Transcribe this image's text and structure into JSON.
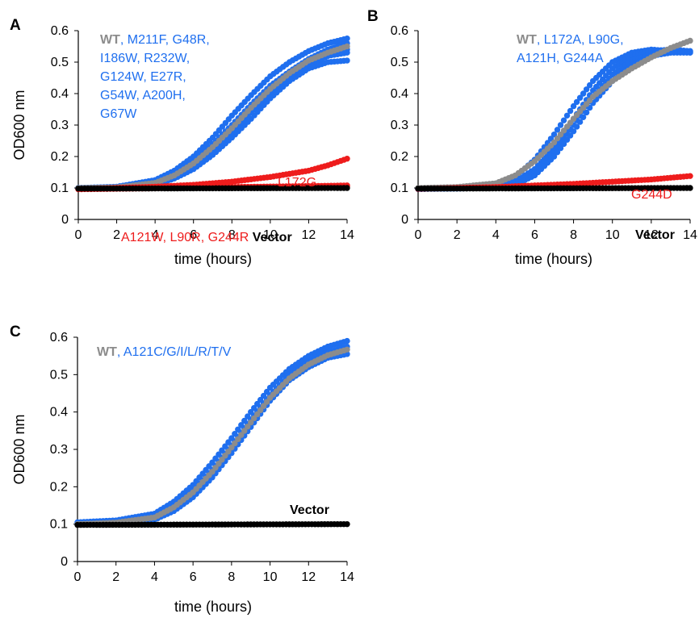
{
  "colors": {
    "wt": "#8c8c8c",
    "mutant_blue": "#1f6fef",
    "mutant_red": "#ee1c1c",
    "vector": "#000000"
  },
  "chart_data": [
    {
      "type": "scatter",
      "panel": "A",
      "xlabel": "time (hours)",
      "ylabel": "OD600 nm",
      "xlim": [
        0,
        14
      ],
      "ylim": [
        0,
        0.6
      ],
      "xticks": [
        "0",
        "2",
        "4",
        "6",
        "8",
        "10",
        "12",
        "14"
      ],
      "yticks": [
        "0",
        "0.1",
        "0.2",
        "0.3",
        "0.4",
        "0.5",
        "0.6"
      ],
      "grid": false,
      "legend": "none",
      "annotations": [
        {
          "lines": [
            [
              {
                "t": "WT",
                "c": "wt",
                "b": true
              },
              {
                "t": ", M211F, G48R,",
                "c": "mutant_blue"
              }
            ],
            [
              {
                "t": "I186W, R232W,",
                "c": "mutant_blue"
              }
            ],
            [
              {
                "t": "G124W, E27R,",
                "c": "mutant_blue"
              }
            ],
            [
              {
                "t": "G54W, A200H,",
                "c": "mutant_blue"
              }
            ],
            [
              {
                "t": "G67W",
                "c": "mutant_blue"
              }
            ]
          ]
        },
        {
          "lines": [
            [
              {
                "t": "L172G",
                "c": "mutant_red"
              }
            ]
          ]
        },
        {
          "lines": [
            [
              {
                "t": "A121W, L90R, G244R",
                "c": "mutant_red"
              },
              {
                "t": " Vector",
                "c": "vector",
                "b": true
              }
            ]
          ]
        }
      ],
      "series": [
        {
          "color": "mutant_blue",
          "x": [
            0,
            2,
            4,
            5,
            6,
            7,
            8,
            9,
            10,
            11,
            12,
            13,
            14
          ],
          "y": [
            0.1,
            0.104,
            0.125,
            0.155,
            0.2,
            0.26,
            0.33,
            0.395,
            0.455,
            0.5,
            0.535,
            0.56,
            0.575
          ]
        },
        {
          "color": "mutant_blue",
          "x": [
            0,
            2,
            4,
            5,
            6,
            7,
            8,
            9,
            10,
            11,
            12,
            13,
            14
          ],
          "y": [
            0.1,
            0.103,
            0.12,
            0.145,
            0.185,
            0.24,
            0.3,
            0.365,
            0.425,
            0.47,
            0.51,
            0.54,
            0.56
          ]
        },
        {
          "color": "mutant_blue",
          "x": [
            0,
            2,
            4,
            5,
            6,
            7,
            8,
            9,
            10,
            11,
            12,
            13,
            14
          ],
          "y": [
            0.1,
            0.102,
            0.115,
            0.135,
            0.17,
            0.22,
            0.28,
            0.34,
            0.4,
            0.45,
            0.49,
            0.52,
            0.54
          ]
        },
        {
          "color": "mutant_blue",
          "x": [
            0,
            2,
            4,
            5,
            6,
            7,
            8,
            9,
            10,
            11,
            12,
            13,
            14
          ],
          "y": [
            0.1,
            0.101,
            0.11,
            0.13,
            0.16,
            0.205,
            0.26,
            0.32,
            0.385,
            0.44,
            0.48,
            0.5,
            0.505
          ]
        },
        {
          "color": "mutant_blue",
          "x": [
            0,
            2,
            4,
            5,
            6,
            7,
            8,
            9,
            10,
            11,
            12,
            13,
            14
          ],
          "y": [
            0.1,
            0.102,
            0.113,
            0.132,
            0.165,
            0.215,
            0.275,
            0.34,
            0.405,
            0.455,
            0.495,
            0.52,
            0.53
          ]
        },
        {
          "color": "wt",
          "x": [
            0,
            2,
            4,
            5,
            6,
            7,
            8,
            9,
            10,
            11,
            12,
            13,
            14
          ],
          "y": [
            0.1,
            0.102,
            0.116,
            0.14,
            0.178,
            0.23,
            0.29,
            0.355,
            0.415,
            0.465,
            0.505,
            0.53,
            0.55
          ]
        },
        {
          "color": "mutant_red",
          "x": [
            0,
            2,
            4,
            6,
            8,
            10,
            12,
            13,
            14
          ],
          "y": [
            0.097,
            0.1,
            0.104,
            0.11,
            0.12,
            0.135,
            0.155,
            0.172,
            0.193
          ]
        },
        {
          "color": "mutant_red",
          "x": [
            0,
            4,
            8,
            12,
            14
          ],
          "y": [
            0.097,
            0.1,
            0.103,
            0.106,
            0.108
          ]
        },
        {
          "color": "mutant_red",
          "x": [
            0,
            4,
            8,
            12,
            14
          ],
          "y": [
            0.096,
            0.099,
            0.101,
            0.103,
            0.105
          ]
        },
        {
          "color": "vector",
          "x": [
            0,
            14
          ],
          "y": [
            0.098,
            0.1
          ]
        }
      ]
    },
    {
      "type": "scatter",
      "panel": "B",
      "xlabel": "time (hours)",
      "ylabel": "",
      "xlim": [
        0,
        14
      ],
      "ylim": [
        0,
        0.6
      ],
      "xticks": [
        "0",
        "2",
        "4",
        "6",
        "8",
        "10",
        "12",
        "14"
      ],
      "yticks": [
        "0",
        "0.1",
        "0.2",
        "0.3",
        "0.4",
        "0.5",
        "0.6"
      ],
      "grid": false,
      "legend": "none",
      "annotations": [
        {
          "lines": [
            [
              {
                "t": "WT",
                "c": "wt",
                "b": true
              },
              {
                "t": ", L172A, L90G,",
                "c": "mutant_blue"
              }
            ],
            [
              {
                "t": "A121H, G244A",
                "c": "mutant_blue"
              }
            ]
          ]
        },
        {
          "lines": [
            [
              {
                "t": "G244D",
                "c": "mutant_red"
              }
            ]
          ]
        },
        {
          "lines": [
            [
              {
                "t": "Vector",
                "c": "vector",
                "b": true
              }
            ]
          ]
        }
      ],
      "series": [
        {
          "color": "mutant_blue",
          "x": [
            0,
            2,
            4,
            5,
            6,
            7,
            8,
            9,
            10,
            11,
            12,
            13,
            14
          ],
          "y": [
            0.098,
            0.101,
            0.11,
            0.135,
            0.19,
            0.27,
            0.36,
            0.44,
            0.5,
            0.53,
            0.54,
            0.535,
            0.53
          ]
        },
        {
          "color": "mutant_blue",
          "x": [
            0,
            2,
            4,
            5,
            6,
            7,
            8,
            9,
            10,
            11,
            12,
            13,
            14
          ],
          "y": [
            0.097,
            0.1,
            0.105,
            0.12,
            0.16,
            0.23,
            0.32,
            0.41,
            0.48,
            0.52,
            0.535,
            0.54,
            0.535
          ]
        },
        {
          "color": "mutant_blue",
          "x": [
            0,
            2,
            4,
            5,
            6,
            7,
            8,
            9,
            10,
            11,
            12,
            13,
            14
          ],
          "y": [
            0.097,
            0.099,
            0.104,
            0.115,
            0.15,
            0.215,
            0.3,
            0.39,
            0.46,
            0.505,
            0.525,
            0.53,
            0.53
          ]
        },
        {
          "color": "mutant_blue",
          "x": [
            0,
            2,
            4,
            5,
            6,
            7,
            8,
            9,
            10,
            11,
            12,
            13,
            14
          ],
          "y": [
            0.097,
            0.098,
            0.102,
            0.11,
            0.14,
            0.2,
            0.28,
            0.37,
            0.44,
            0.49,
            0.52,
            0.53,
            0.535
          ]
        },
        {
          "color": "wt",
          "x": [
            0,
            2,
            4,
            5,
            6,
            7,
            8,
            9,
            10,
            11,
            12,
            13,
            14
          ],
          "y": [
            0.1,
            0.103,
            0.115,
            0.14,
            0.185,
            0.245,
            0.32,
            0.39,
            0.44,
            0.48,
            0.515,
            0.545,
            0.568
          ]
        },
        {
          "color": "mutant_red",
          "x": [
            0,
            4,
            8,
            12,
            14
          ],
          "y": [
            0.097,
            0.103,
            0.113,
            0.127,
            0.138
          ]
        },
        {
          "color": "vector",
          "x": [
            0,
            14
          ],
          "y": [
            0.098,
            0.1
          ]
        }
      ]
    },
    {
      "type": "scatter",
      "panel": "C",
      "xlabel": "time (hours)",
      "ylabel": "OD600 nm",
      "xlim": [
        0,
        14
      ],
      "ylim": [
        0,
        0.6
      ],
      "xticks": [
        "0",
        "2",
        "4",
        "6",
        "8",
        "10",
        "12",
        "14"
      ],
      "yticks": [
        "0",
        "0.1",
        "0.2",
        "0.3",
        "0.4",
        "0.5",
        "0.6"
      ],
      "grid": false,
      "legend": "none",
      "annotations": [
        {
          "lines": [
            [
              {
                "t": "WT",
                "c": "wt",
                "b": true
              },
              {
                "t": ", A121C/G/I/L/R/T/V",
                "c": "mutant_blue"
              }
            ]
          ]
        },
        {
          "lines": [
            [
              {
                "t": "Vector",
                "c": "vector",
                "b": true
              }
            ]
          ]
        }
      ],
      "series": [
        {
          "color": "mutant_blue",
          "x": [
            0,
            2,
            4,
            5,
            6,
            7,
            8,
            9,
            10,
            11,
            12,
            13,
            14
          ],
          "y": [
            0.105,
            0.11,
            0.128,
            0.16,
            0.205,
            0.265,
            0.33,
            0.4,
            0.465,
            0.515,
            0.55,
            0.575,
            0.59
          ]
        },
        {
          "color": "mutant_blue",
          "x": [
            0,
            2,
            4,
            5,
            6,
            7,
            8,
            9,
            10,
            11,
            12,
            13,
            14
          ],
          "y": [
            0.102,
            0.106,
            0.12,
            0.148,
            0.19,
            0.245,
            0.31,
            0.38,
            0.445,
            0.5,
            0.535,
            0.56,
            0.575
          ]
        },
        {
          "color": "mutant_blue",
          "x": [
            0,
            2,
            4,
            5,
            6,
            7,
            8,
            9,
            10,
            11,
            12,
            13,
            14
          ],
          "y": [
            0.1,
            0.103,
            0.112,
            0.135,
            0.172,
            0.225,
            0.29,
            0.36,
            0.43,
            0.485,
            0.52,
            0.545,
            0.555
          ]
        },
        {
          "color": "wt",
          "x": [
            0,
            2,
            4,
            5,
            6,
            7,
            8,
            9,
            10,
            11,
            12,
            13,
            14
          ],
          "y": [
            0.1,
            0.104,
            0.118,
            0.145,
            0.185,
            0.24,
            0.305,
            0.372,
            0.438,
            0.49,
            0.527,
            0.552,
            0.567
          ]
        },
        {
          "color": "vector",
          "x": [
            0,
            14
          ],
          "y": [
            0.098,
            0.1
          ]
        }
      ]
    }
  ]
}
